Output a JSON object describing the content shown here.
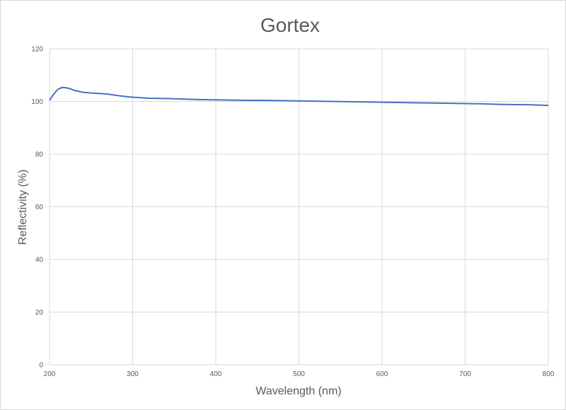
{
  "chart_data": {
    "type": "line",
    "title": "Gortex",
    "xlabel": "Wavelength (nm)",
    "ylabel": "Reflectivity (%)",
    "xlim": [
      200,
      800
    ],
    "ylim": [
      0,
      120
    ],
    "x_ticks": [
      200,
      300,
      400,
      500,
      600,
      700,
      800
    ],
    "y_ticks": [
      0,
      20,
      40,
      60,
      80,
      100,
      120
    ],
    "grid": true,
    "legend": "none",
    "series_color": "#4472c4",
    "series": [
      {
        "x": [
          200,
          205,
          210,
          215,
          220,
          225,
          230,
          240,
          250,
          260,
          270,
          280,
          290,
          300,
          320,
          340,
          360,
          380,
          400,
          420,
          440,
          460,
          480,
          500,
          520,
          540,
          560,
          580,
          600,
          620,
          640,
          660,
          680,
          700,
          720,
          740,
          760,
          780,
          800
        ],
        "y": [
          100.4,
          102.8,
          104.6,
          105.3,
          105.2,
          104.8,
          104.2,
          103.5,
          103.2,
          103.0,
          102.8,
          102.3,
          101.9,
          101.6,
          101.2,
          101.1,
          100.9,
          100.7,
          100.6,
          100.5,
          100.4,
          100.4,
          100.3,
          100.2,
          100.1,
          100.0,
          99.9,
          99.8,
          99.7,
          99.6,
          99.5,
          99.4,
          99.3,
          99.2,
          99.1,
          98.9,
          98.8,
          98.7,
          98.5
        ]
      }
    ]
  }
}
